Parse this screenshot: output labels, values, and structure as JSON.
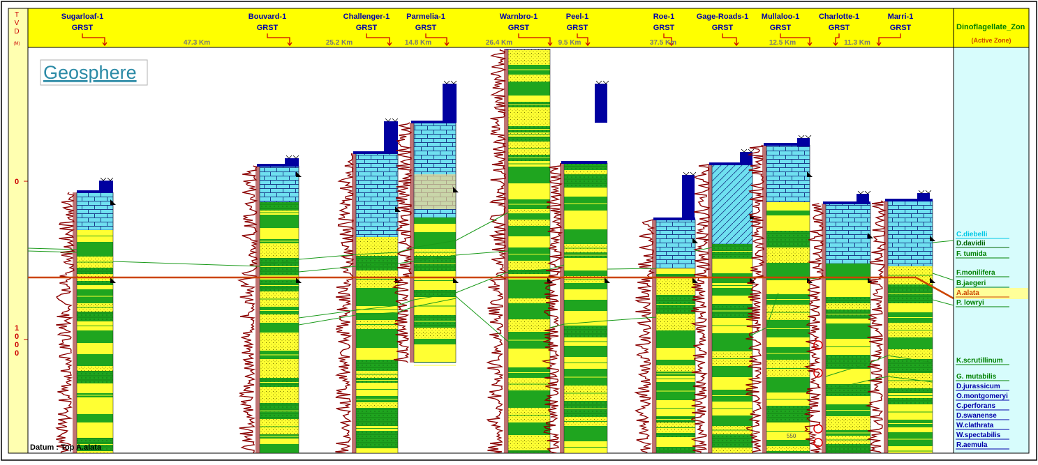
{
  "axis": {
    "label_letters": [
      "T",
      "V",
      "D"
    ],
    "unit": "(M)",
    "tick_0": "0",
    "tick_1000_lines": [
      "1",
      "0",
      "0",
      "0"
    ]
  },
  "logo": "Geosphere",
  "datum": "Datum : Top A.alata",
  "wells": [
    {
      "name": "Sugarloaf-1",
      "log": "GRST"
    },
    {
      "name": "Bouvard-1",
      "log": "GRST"
    },
    {
      "name": "Challenger-1",
      "log": "GRST"
    },
    {
      "name": "Parmelia-1",
      "log": "GRST"
    },
    {
      "name": "Warnbro-1",
      "log": "GRST"
    },
    {
      "name": "Peel-1",
      "log": "GRST"
    },
    {
      "name": "Roe-1",
      "log": "GRST"
    },
    {
      "name": "Gage-Roads-1",
      "log": "GRST"
    },
    {
      "name": "Mullaloo-1",
      "log": "GRST"
    },
    {
      "name": "Charlotte-1",
      "log": "GRST"
    },
    {
      "name": "Marri-1",
      "log": "GRST"
    }
  ],
  "distances": [
    "47.3 Km",
    "25.2 Km",
    "14.8 Km",
    "26.4 Km",
    "9.5 Km",
    "37.5 Km",
    "12.5 Km",
    "11.3 Km"
  ],
  "zone_panel": {
    "title": "Dinoflagellate_Zon",
    "subtitle": "(Active Zone)"
  },
  "zones": [
    {
      "name": "C.diebelli",
      "color": "#00c8e6"
    },
    {
      "name": "D.davidii",
      "color": "#006400"
    },
    {
      "name": "F. tumida",
      "color": "#008000"
    },
    {
      "name": "F.monilifera",
      "color": "#008000"
    },
    {
      "name": "B.jaegeri",
      "color": "#008000"
    },
    {
      "name": "A.alata",
      "color": "#cc4400",
      "active": true
    },
    {
      "name": "P. lowryi",
      "color": "#008000"
    },
    {
      "name": "K.scrutillinum",
      "color": "#008000"
    },
    {
      "name": "G. mutabilis",
      "color": "#008000"
    },
    {
      "name": "D.jurassicum",
      "color": "#0000aa"
    },
    {
      "name": "O.montgomeryi",
      "color": "#0000aa"
    },
    {
      "name": "C.perforans",
      "color": "#0000aa"
    },
    {
      "name": "D.swanense",
      "color": "#0000aa"
    },
    {
      "name": "W.clathrata",
      "color": "#0000aa"
    },
    {
      "name": "W.spectabilis",
      "color": "#0000aa"
    },
    {
      "name": "R.aemula",
      "color": "#0000aa"
    }
  ],
  "misc_label": "550",
  "colors": {
    "header": "#ffff00",
    "limestone": "#6fe0f0",
    "sand": "#ffff33",
    "shale": "#1fa51f",
    "gr_log": "#8b0000",
    "datum_line": "#cc4400",
    "zone_panel": "#d7fcfc",
    "dark_blue": "#0000a0"
  }
}
